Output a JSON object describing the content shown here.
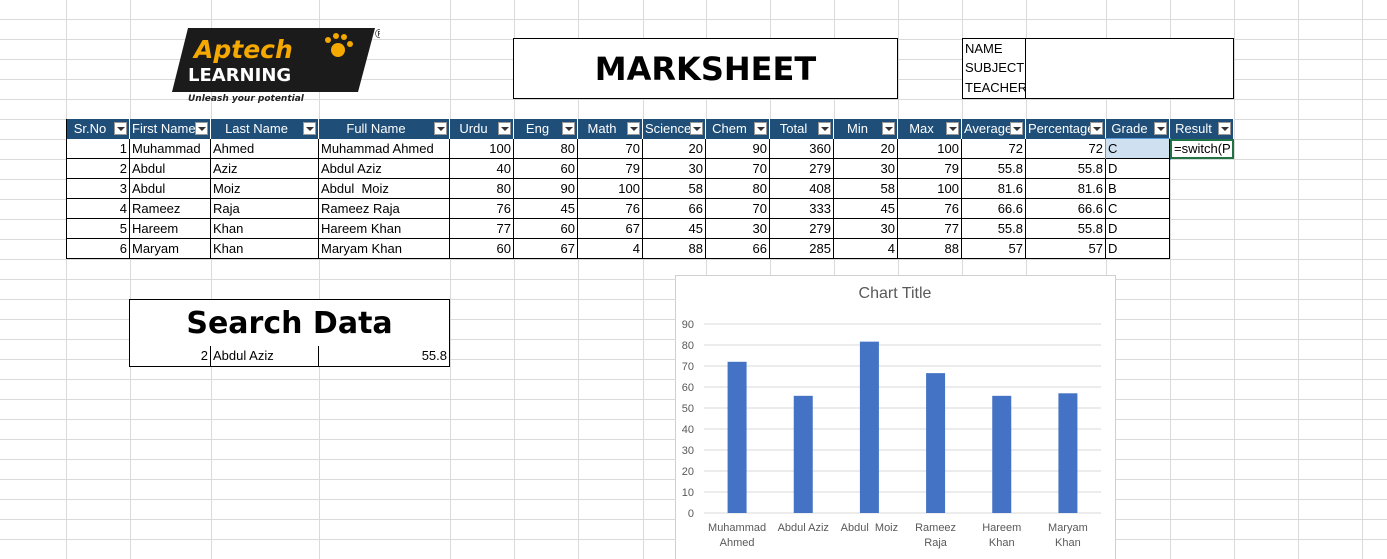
{
  "logo": {
    "brand": "Aptech",
    "sub": "LEARNING",
    "tagline": "Unleash your potential",
    "mark": "®"
  },
  "title": "MARKSHEET",
  "info": [
    "NAME",
    "SUBJECT",
    "TEACHER"
  ],
  "table": {
    "headers": [
      "Sr.No",
      "First Name",
      "Last Name",
      "Full Name",
      "Urdu",
      "Eng",
      "Math",
      "Science",
      "Chem",
      "Total",
      "Min",
      "Max",
      "Average",
      "Percentage",
      "Grade",
      "Result"
    ],
    "rows": [
      [
        1,
        "Muhammad",
        "Ahmed",
        "Muhammad Ahmed",
        100,
        80,
        70,
        20,
        90,
        360,
        20,
        100,
        72,
        72,
        "C",
        "=switch(P"
      ],
      [
        2,
        "Abdul",
        "Aziz",
        "Abdul Aziz",
        40,
        60,
        79,
        30,
        70,
        279,
        30,
        79,
        55.8,
        55.8,
        "D"
      ],
      [
        3,
        "Abdul",
        "Moiz",
        "Abdul  Moiz",
        80,
        90,
        100,
        58,
        80,
        408,
        58,
        100,
        81.6,
        81.6,
        "B"
      ],
      [
        4,
        "Rameez",
        "Raja",
        "Rameez Raja",
        76,
        45,
        76,
        66,
        70,
        333,
        45,
        76,
        66.6,
        66.6,
        "C"
      ],
      [
        5,
        "Hareem",
        "Khan",
        "Hareem Khan",
        77,
        60,
        67,
        45,
        30,
        279,
        30,
        77,
        55.8,
        55.8,
        "D"
      ],
      [
        6,
        "Maryam",
        "Khan",
        "Maryam Khan",
        60,
        67,
        4,
        88,
        66,
        285,
        4,
        88,
        57,
        57,
        "D"
      ]
    ]
  },
  "search": {
    "title": "Search Data",
    "row": [
      2,
      "Abdul Aziz",
      55.8
    ]
  },
  "chart_data": {
    "type": "bar",
    "title": "Chart Title",
    "categories": [
      "Muhammad Ahmed",
      "Abdul Aziz",
      "Abdul  Moiz",
      "Rameez Raja",
      "Hareem Khan",
      "Maryam Khan"
    ],
    "values": [
      72,
      55.8,
      81.6,
      66.6,
      55.8,
      57
    ],
    "color": "#4472c4",
    "ylim": [
      0,
      90
    ],
    "yticks": [
      0,
      10,
      20,
      30,
      40,
      50,
      60,
      70,
      80,
      90
    ],
    "grid": true
  }
}
